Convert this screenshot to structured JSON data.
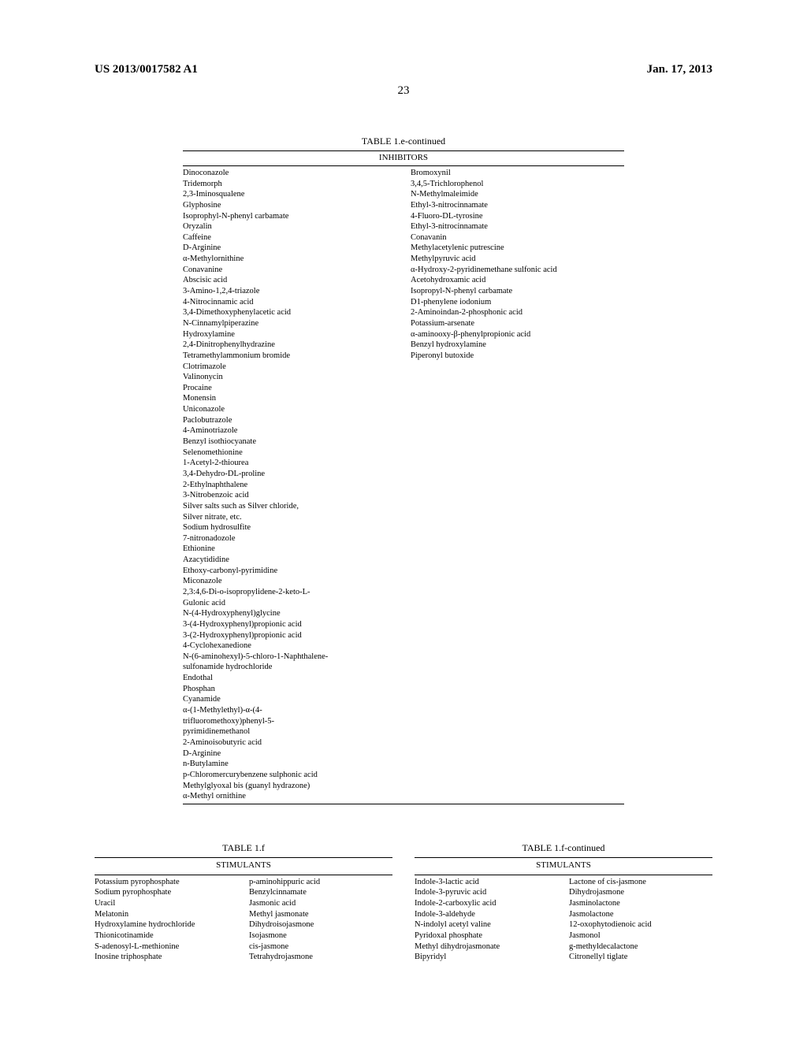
{
  "header": {
    "doc_id": "US 2013/0017582 A1",
    "date": "Jan. 17, 2013",
    "page_number": "23"
  },
  "table1e": {
    "title": "TABLE 1.e-continued",
    "subtitle": "INHIBITORS",
    "left": [
      "Dinoconazole",
      "Tridemorph",
      "2,3-Iminosqualene",
      "Glyphosine",
      "Isoprophyl-N-phenyl carbamate",
      "Oryzalin",
      "Caffeine",
      "D-Arginine",
      "α-Methylornithine",
      "Conavanine",
      "Abscisic acid",
      "3-Amino-1,2,4-triazole",
      "4-Nitrocinnamic acid",
      "3,4-Dimethoxyphenylacetic acid",
      "N-Cinnamylpiperazine",
      "Hydroxylamine",
      "2,4-Dinitrophenylhydrazine",
      "Tetramethylammonium bromide",
      "Clotrimazole",
      "Valinonycin",
      "Procaine",
      "Monensin",
      "Uniconazole",
      "Paclobutrazole",
      "4-Aminotriazole",
      "Benzyl isothiocyanate",
      "Selenomethionine",
      "1-Acetyl-2-thiourea",
      "3,4-Dehydro-DL-proline",
      "2-Ethylnaphthalene",
      "3-Nitrobenzoic acid",
      "Silver salts such as Silver chloride,",
      "Silver nitrate, etc.",
      "Sodium hydrosulfite",
      "7-nitronadozole",
      "Ethionine",
      "Azacytididine",
      "Ethoxy-carbonyl-pyrimidine",
      "Miconazole",
      "2,3:4,6-Di-o-isopropylidene-2-keto-L-",
      "Gulonic acid",
      "N-(4-Hydroxyphenyl)glycine",
      "3-(4-Hydroxyphenyl)propionic acid",
      "3-(2-Hydroxyphenyl)propionic acid",
      "4-Cyclohexanedione",
      "N-(6-aminohexyl)-5-chloro-1-Naphthalene-",
      "sulfonamide hydrochloride",
      "Endothal",
      "Phosphan",
      "Cyanamide",
      "α-(1-Methylethyl)-α-(4-",
      "trifluoromethoxy)phenyl-5-",
      "pyrimidinemethanol",
      "2-Aminoisobutyric acid",
      "D-Arginine",
      "n-Butylamine",
      "p-Chloromercurybenzene sulphonic acid",
      "Methylglyoxal bis (guanyl hydrazone)",
      "α-Methyl ornithine"
    ],
    "right": [
      "Bromoxynil",
      "3,4,5-Trichlorophenol",
      "N-Methylmaleimide",
      "Ethyl-3-nitrocinnamate",
      "4-Fluoro-DL-tyrosine",
      "Ethyl-3-nitrocinnamate",
      "Conavanin",
      "Methylacetylenic putrescine",
      "Methylpyruvic acid",
      "α-Hydroxy-2-pyridinemethane sulfonic acid",
      "Acetohydroxamic acid",
      "Isopropyl-N-phenyl carbamate",
      "D1-phenylene iodonium",
      "2-Aminoindan-2-phosphonic acid",
      "Potassium-arsenate",
      "α-aminooxy-β-phenylpropionic acid",
      "Benzyl hydroxylamine",
      "Piperonyl butoxide"
    ]
  },
  "table1f_left": {
    "title": "TABLE 1.f",
    "subtitle": "STIMULANTS",
    "col1": [
      "Potassium pyrophosphate",
      "Sodium pyrophosphate",
      "Uracil",
      "Melatonin",
      "Hydroxylamine hydrochloride",
      "Thionicotinamide",
      "S-adenosyl-L-methionine",
      "Inosine triphosphate"
    ],
    "col2": [
      "p-aminohippuric acid",
      "Benzylcinnamate",
      "Jasmonic acid",
      "Methyl jasmonate",
      "Dihydroisojasmone",
      "Isojasmone",
      "cis-jasmone",
      "Tetrahydrojasmone"
    ]
  },
  "table1f_right": {
    "title": "TABLE 1.f-continued",
    "subtitle": "STIMULANTS",
    "col1": [
      "Indole-3-lactic acid",
      "Indole-3-pyruvic acid",
      "Indole-2-carboxylic acid",
      "Indole-3-aldehyde",
      "N-indolyl acetyl valine",
      "Pyridoxal phosphate",
      "Methyl dihydrojasmonate",
      "Bipyridyl"
    ],
    "col2": [
      "Lactone of cis-jasmone",
      "Dihydrojasmone",
      "Jasminolactone",
      "Jasmolactone",
      "12-oxophytodienoic acid",
      "Jasmonol",
      "g-methyldecalactone",
      "Citronellyl tiglate"
    ]
  }
}
